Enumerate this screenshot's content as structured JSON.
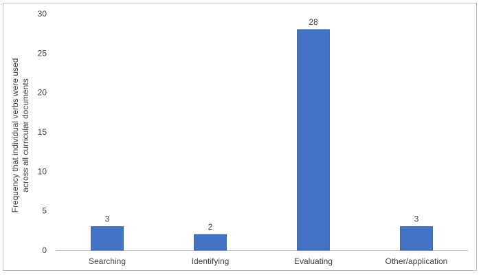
{
  "chart_data": {
    "type": "bar",
    "title": "",
    "xlabel": "",
    "ylabel": "Frequency that individual verbs were used across all curricular documents",
    "ylabel_lines": [
      "Frequency that individual verbs were used",
      "across all curricular documents"
    ],
    "categories": [
      "Searching",
      "Identifying",
      "Evaluating",
      "Other/application"
    ],
    "values": [
      3,
      2,
      28,
      3
    ],
    "data_labels": [
      "3",
      "2",
      "28",
      "3"
    ],
    "ylim": [
      0,
      30
    ],
    "yticks": [
      "0",
      "5",
      "10",
      "15",
      "20",
      "25",
      "30"
    ],
    "grid": false,
    "legend": "none",
    "colors": {
      "bar": "#4472c4",
      "bar_edge": "#2f5597",
      "axis": "#bfbfbf",
      "text": "#404040"
    }
  }
}
